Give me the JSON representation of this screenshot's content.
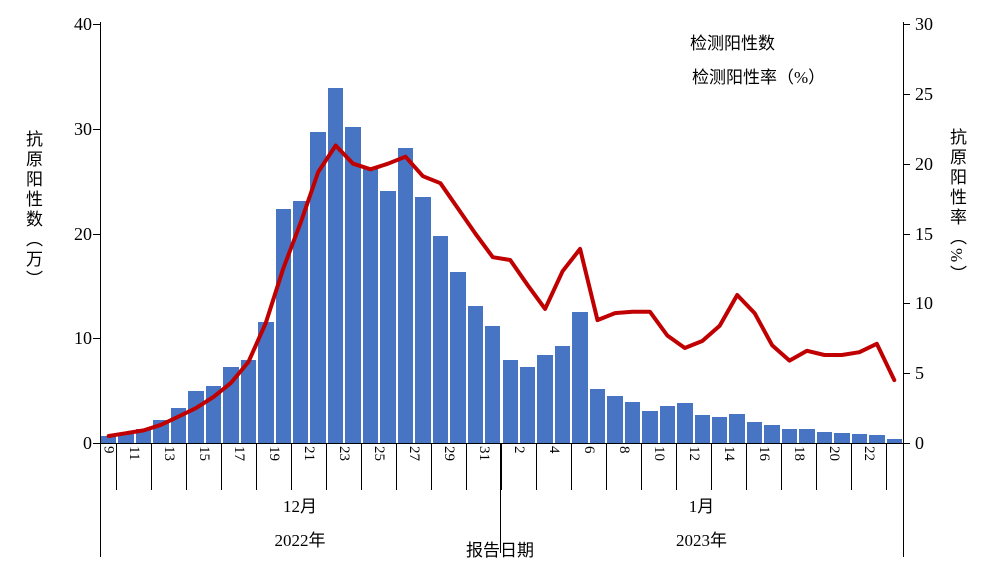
{
  "chart_data": {
    "type": "bar+line",
    "title": "",
    "xlabel": "报告日期",
    "categories": [
      "12-09",
      "12-10",
      "12-11",
      "12-12",
      "12-13",
      "12-14",
      "12-15",
      "12-16",
      "12-17",
      "12-18",
      "12-19",
      "12-20",
      "12-21",
      "12-22",
      "12-23",
      "12-24",
      "12-25",
      "12-26",
      "12-27",
      "12-28",
      "12-29",
      "12-30",
      "12-31",
      "01-01",
      "01-02",
      "01-03",
      "01-04",
      "01-05",
      "01-06",
      "01-07",
      "01-08",
      "01-09",
      "01-10",
      "01-11",
      "01-12",
      "01-13",
      "01-14",
      "01-15",
      "01-16",
      "01-17",
      "01-18",
      "01-19",
      "01-20",
      "01-21",
      "01-22",
      "01-23"
    ],
    "series": [
      {
        "name": "检测阳性数",
        "type": "bar",
        "axis": "left",
        "unit": "万",
        "color": "#4775C4",
        "values": [
          0.7,
          0.9,
          1.3,
          2.2,
          3.3,
          5.0,
          5.4,
          7.3,
          7.9,
          11.6,
          22.3,
          23.1,
          29.7,
          33.9,
          30.2,
          26.3,
          24.1,
          28.2,
          23.5,
          19.8,
          16.3,
          13.1,
          11.2,
          7.9,
          7.3,
          8.4,
          9.3,
          12.5,
          5.2,
          4.5,
          3.9,
          3.1,
          3.5,
          3.8,
          2.7,
          2.5,
          2.8,
          2.0,
          1.7,
          1.3,
          1.3,
          1.1,
          1.0,
          0.9,
          0.8,
          0.4
        ]
      },
      {
        "name": "检测阳性率（%）",
        "type": "line",
        "axis": "right",
        "unit": "%",
        "color": "#C00000",
        "values": [
          0.5,
          0.7,
          0.9,
          1.3,
          1.9,
          2.5,
          3.3,
          4.3,
          5.8,
          8.6,
          12.5,
          15.8,
          19.4,
          21.3,
          20.0,
          19.6,
          20.0,
          20.5,
          19.1,
          18.6,
          16.8,
          15.0,
          13.3,
          13.1,
          11.3,
          9.6,
          12.3,
          13.9,
          8.8,
          9.3,
          9.4,
          9.4,
          7.7,
          6.8,
          7.3,
          8.4,
          10.6,
          9.3,
          7.0,
          5.9,
          6.6,
          6.3,
          6.3,
          6.5,
          7.1,
          4.5
        ]
      }
    ],
    "left_axis": {
      "label": "抗原阳性数（万）",
      "min": 0,
      "max": 40,
      "ticks": [
        0,
        10,
        20,
        30,
        40
      ]
    },
    "right_axis": {
      "label": "抗原阳性率（%）",
      "min": 0,
      "max": 30,
      "ticks": [
        0,
        5,
        10,
        15,
        20,
        25,
        30
      ]
    },
    "x_groups": [
      {
        "month": "12月",
        "year": "2022年",
        "day_tick_labels": [
          "9",
          "11",
          "13",
          "15",
          "17",
          "19",
          "21",
          "23",
          "25",
          "27",
          "29",
          "31"
        ]
      },
      {
        "month": "1月",
        "year": "2023年",
        "day_tick_labels": [
          "2",
          "4",
          "6",
          "8",
          "10",
          "12",
          "14",
          "16",
          "18",
          "20",
          "22"
        ]
      }
    ],
    "legend_position": "top-right",
    "grid": false
  }
}
